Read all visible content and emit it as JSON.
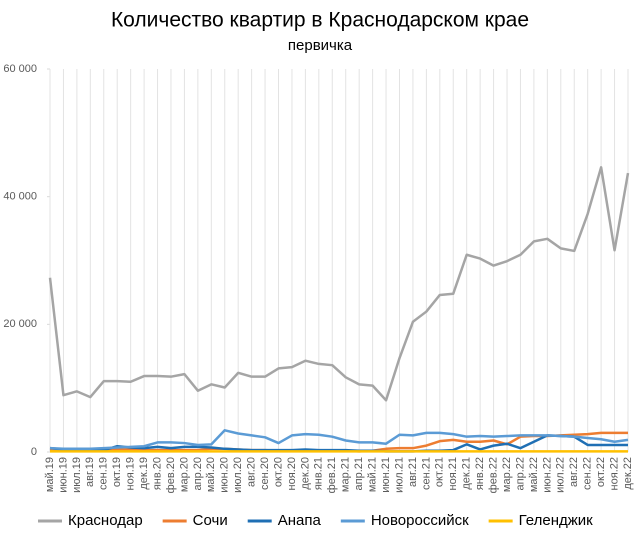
{
  "chart_data": {
    "type": "line",
    "title": "Количество квартир в Краснодарском крае",
    "subtitle": "первичка",
    "categories": [
      "май.19",
      "июн.19",
      "июл.19",
      "авг.19",
      "сен.19",
      "окт.19",
      "ноя.19",
      "дек.19",
      "янв.20",
      "фев.20",
      "мар.20",
      "апр.20",
      "май.20",
      "июн.20",
      "июл.20",
      "авг.20",
      "сен.20",
      "окт.20",
      "ноя.20",
      "дек.20",
      "янв.21",
      "фев.21",
      "мар.21",
      "апр.21",
      "май.21",
      "июн.21",
      "июл.21",
      "авг.21",
      "сен.21",
      "окт.21",
      "ноя.21",
      "дек.21",
      "янв.22",
      "фев.22",
      "мар.22",
      "апр.22",
      "май.22",
      "июн.22",
      "июл.22",
      "авг.22",
      "сен.22",
      "окт.22",
      "ноя.22",
      "дек.22"
    ],
    "series": [
      {
        "name": "Краснодар",
        "color": "#a5a5a5",
        "values": [
          27300,
          8900,
          9500,
          8600,
          11100,
          11100,
          11000,
          11900,
          11900,
          11800,
          12200,
          9600,
          10600,
          10100,
          12400,
          11800,
          11800,
          13100,
          13300,
          14300,
          13800,
          13600,
          11700,
          10600,
          10400,
          8100,
          14700,
          20400,
          22000,
          24600,
          24800,
          30900,
          30300,
          29200,
          29900,
          30900,
          33000,
          33400,
          31900,
          31500,
          37300,
          44600,
          31600,
          43700
        ]
      },
      {
        "name": "Сочи",
        "color": "#ed7d31",
        "values": [
          400,
          300,
          300,
          200,
          300,
          400,
          400,
          300,
          300,
          300,
          300,
          300,
          500,
          500,
          400,
          300,
          300,
          200,
          200,
          200,
          200,
          200,
          200,
          100,
          200,
          500,
          600,
          600,
          1000,
          1700,
          1900,
          1600,
          1600,
          1800,
          1200,
          2400,
          2500,
          2500,
          2600,
          2700,
          2800,
          3000,
          3000,
          3000
        ]
      },
      {
        "name": "Анапа",
        "color": "#1f6fb4",
        "values": [
          600,
          400,
          400,
          400,
          300,
          900,
          700,
          600,
          800,
          600,
          800,
          800,
          700,
          500,
          400,
          300,
          300,
          300,
          300,
          400,
          300,
          300,
          300,
          200,
          200,
          100,
          100,
          100,
          200,
          200,
          300,
          1200,
          400,
          1000,
          1300,
          600,
          1600,
          2600,
          2500,
          2400,
          1100,
          1100,
          1100,
          1100
        ]
      },
      {
        "name": "Новороссийск",
        "color": "#5b9bd5",
        "values": [
          600,
          500,
          500,
          500,
          600,
          700,
          800,
          900,
          1500,
          1500,
          1400,
          1100,
          1200,
          3400,
          2900,
          2600,
          2300,
          1400,
          2600,
          2800,
          2700,
          2400,
          1800,
          1500,
          1500,
          1300,
          2700,
          2600,
          3000,
          3000,
          2800,
          2400,
          2500,
          2400,
          2500,
          2600,
          2600,
          2600,
          2500,
          2400,
          2200,
          2000,
          1600,
          1900
        ]
      },
      {
        "name": "Геленджик",
        "color": "#ffc000",
        "values": [
          100,
          100,
          100,
          100,
          100,
          100,
          100,
          100,
          100,
          100,
          100,
          100,
          100,
          100,
          100,
          100,
          100,
          100,
          100,
          100,
          100,
          100,
          100,
          100,
          100,
          100,
          100,
          100,
          100,
          100,
          100,
          100,
          100,
          100,
          100,
          100,
          100,
          100,
          100,
          100,
          100,
          100,
          100,
          100
        ]
      }
    ],
    "ylim": [
      0,
      60000
    ],
    "yticks": [
      0,
      {
        "value": 20000,
        "label": "20 000"
      },
      {
        "value": 40000,
        "label": "40 000"
      },
      {
        "value": 60000,
        "label": "60 000"
      }
    ],
    "grid": true,
    "legend": "bottom"
  }
}
